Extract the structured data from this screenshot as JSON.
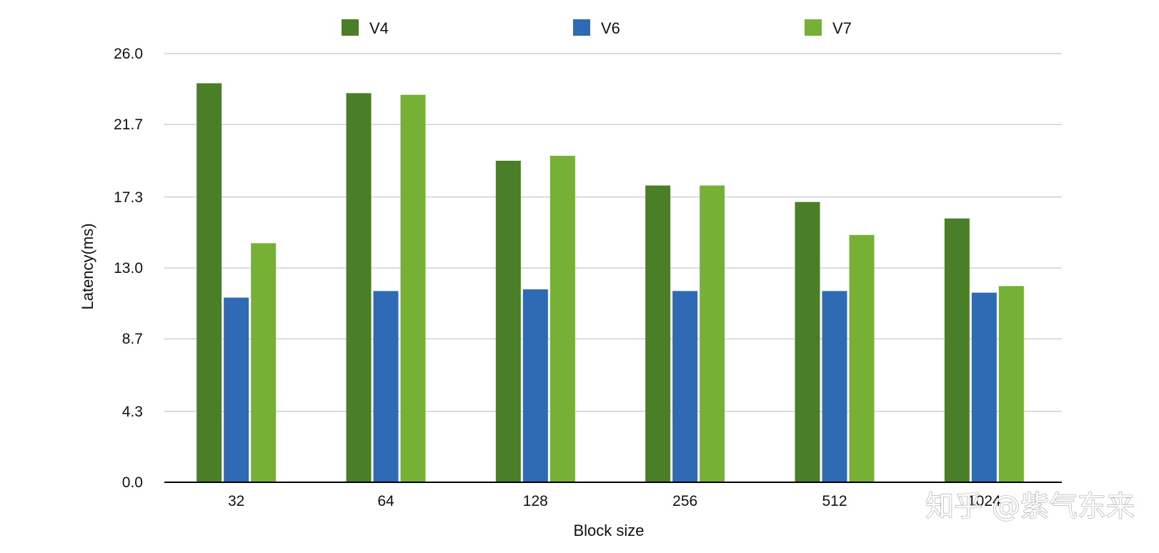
{
  "chart_data": {
    "type": "bar",
    "title": "",
    "xlabel": "Block size",
    "ylabel": "Latency(ms)",
    "ylim": [
      0,
      26
    ],
    "yticks": [
      0,
      4.3,
      8.7,
      13.0,
      17.3,
      21.7,
      26.0
    ],
    "ytick_labels": [
      "0.0",
      "4.3",
      "8.7",
      "13.0",
      "17.3",
      "21.7",
      "26.0"
    ],
    "grid": true,
    "legend_position": "top",
    "categories": [
      "32",
      "64",
      "128",
      "256",
      "512",
      "1024"
    ],
    "series": [
      {
        "name": "V4",
        "color": "#4a7f28",
        "values": [
          24.2,
          23.6,
          19.5,
          18.0,
          17.0,
          16.0
        ]
      },
      {
        "name": "V6",
        "color": "#2f6bb5",
        "values": [
          11.2,
          11.6,
          11.7,
          11.6,
          11.6,
          11.5
        ]
      },
      {
        "name": "V7",
        "color": "#76b136",
        "values": [
          14.5,
          23.5,
          19.8,
          18.0,
          15.0,
          11.9
        ]
      }
    ]
  },
  "watermark": {
    "text": "知乎 @紫气东来"
  }
}
